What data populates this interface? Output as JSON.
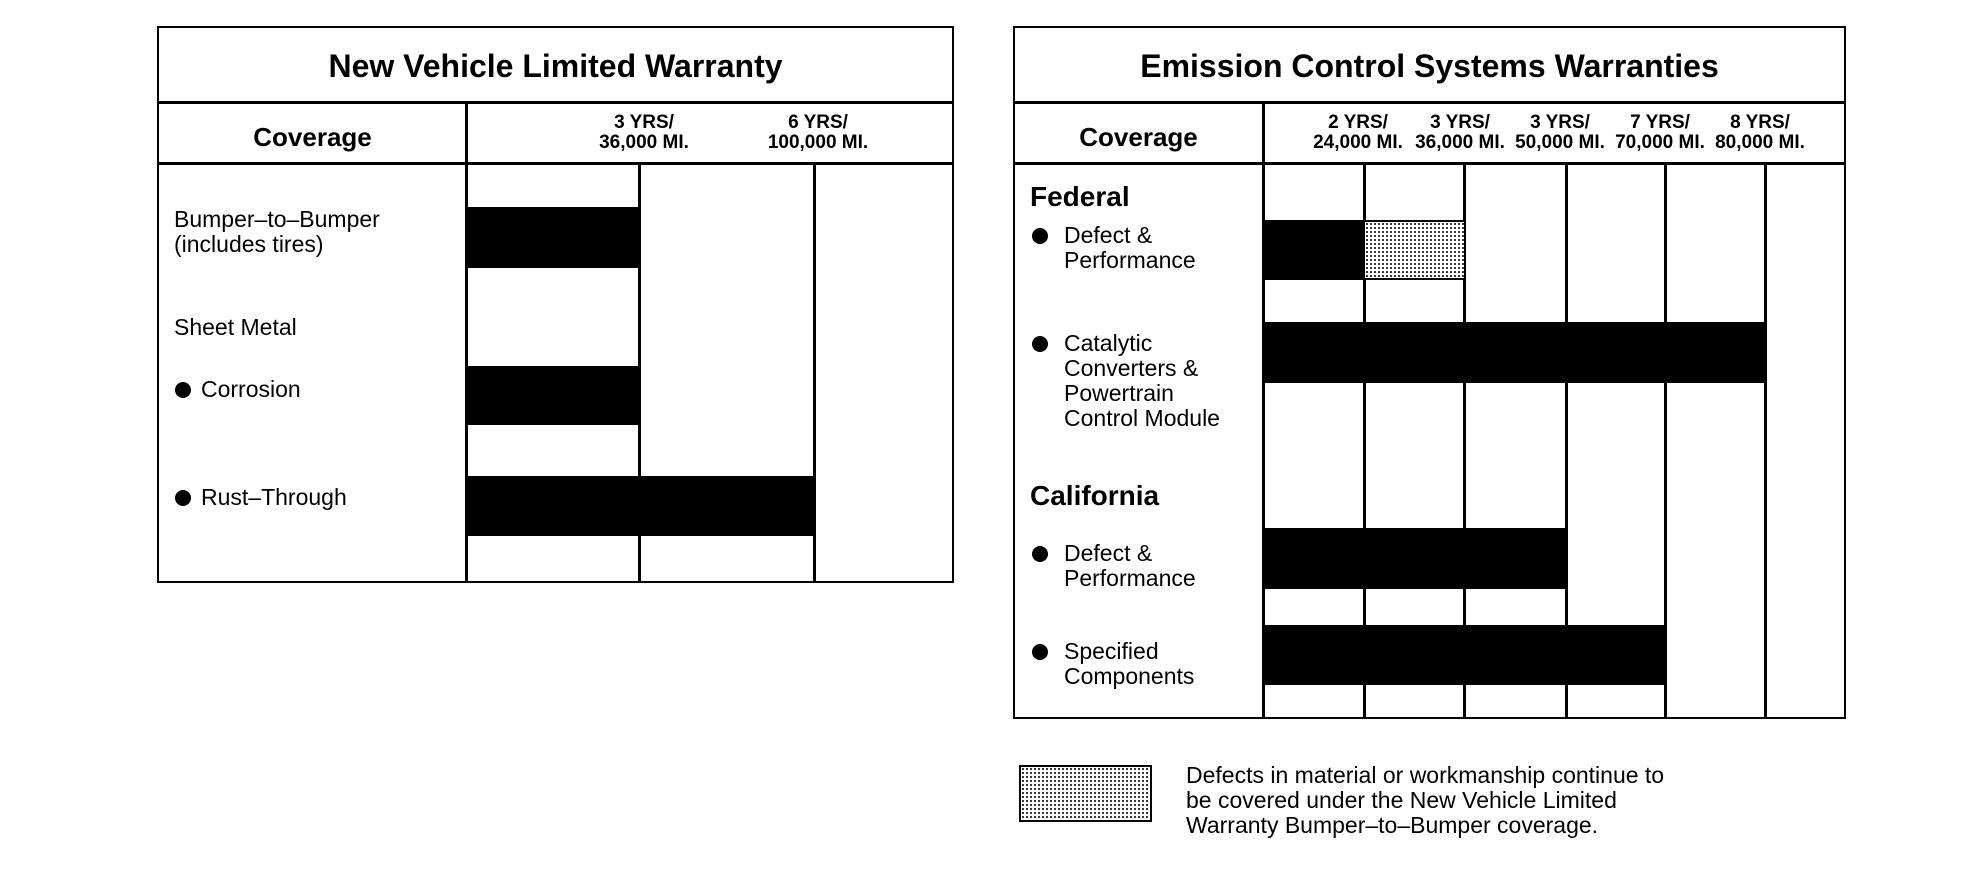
{
  "nvlw": {
    "title": "New Vehicle Limited Warranty",
    "coverage_label": "Coverage",
    "ticks": [
      "3 YRS/\n36,000 MI.",
      "6 YRS/\n100,000 MI."
    ],
    "rows": {
      "bumper": "Bumper–to–Bumper\n(includes tires)",
      "sheet_metal": "Sheet Metal",
      "corrosion": "Corrosion",
      "rust": "Rust–Through"
    }
  },
  "ecs": {
    "title": "Emission Control Systems Warranties",
    "coverage_label": "Coverage",
    "ticks": [
      "2 YRS/\n24,000 MI.",
      "3 YRS/\n36,000 MI.",
      "3 YRS/\n50,000 MI.",
      "7 YRS/\n70,000 MI.",
      "8 YRS/\n80,000 MI."
    ],
    "federal_label": "Federal",
    "california_label": "California",
    "rows": {
      "fed_defect": "Defect &\nPerformance",
      "fed_catalytic": "Catalytic\nConverters &\nPowertrain\nControl Module",
      "cal_defect": "Defect &\nPerformance",
      "cal_specified": "Specified\nComponents"
    }
  },
  "legend": {
    "text": "Defects in material or workmanship continue to\nbe covered under the New Vehicle Limited\nWarranty Bumper–to–Bumper coverage."
  },
  "chart_data": [
    {
      "type": "bar",
      "title": "New Vehicle Limited Warranty",
      "xlabel": "",
      "ylabel": "Coverage",
      "ticks": [
        "3 YRS/ 36,000 MI.",
        "6 YRS/ 100,000 MI."
      ],
      "series": [
        {
          "values": [
            {
              "category": "Bumper–to–Bumper (includes tires)",
              "years": 3,
              "miles": 36000
            },
            {
              "category": "Corrosion",
              "years": 3,
              "miles": 36000
            },
            {
              "category": "Rust–Through",
              "years": 6,
              "miles": 100000
            }
          ]
        }
      ]
    },
    {
      "type": "bar",
      "title": "Emission Control Systems Warranties",
      "xlabel": "",
      "ylabel": "Coverage",
      "ticks": [
        "2 YRS/ 24,000 MI.",
        "3 YRS/ 36,000 MI.",
        "3 YRS/ 50,000 MI.",
        "7 YRS/ 70,000 MI.",
        "8 YRS/ 80,000 MI."
      ],
      "series": [
        {
          "values": [
            {
              "group": "Federal",
              "category": "Defect & Performance",
              "years": 2,
              "miles": 24000,
              "extended_by_bumper_to_bumper": {
                "years": 3,
                "miles": 36000
              }
            },
            {
              "group": "Federal",
              "category": "Catalytic Converters & Powertrain Control Module",
              "years": 8,
              "miles": 80000
            },
            {
              "group": "California",
              "category": "Defect & Performance",
              "years": 3,
              "miles": 50000
            },
            {
              "group": "California",
              "category": "Specified Components",
              "years": 7,
              "miles": 70000
            }
          ]
        }
      ]
    }
  ]
}
